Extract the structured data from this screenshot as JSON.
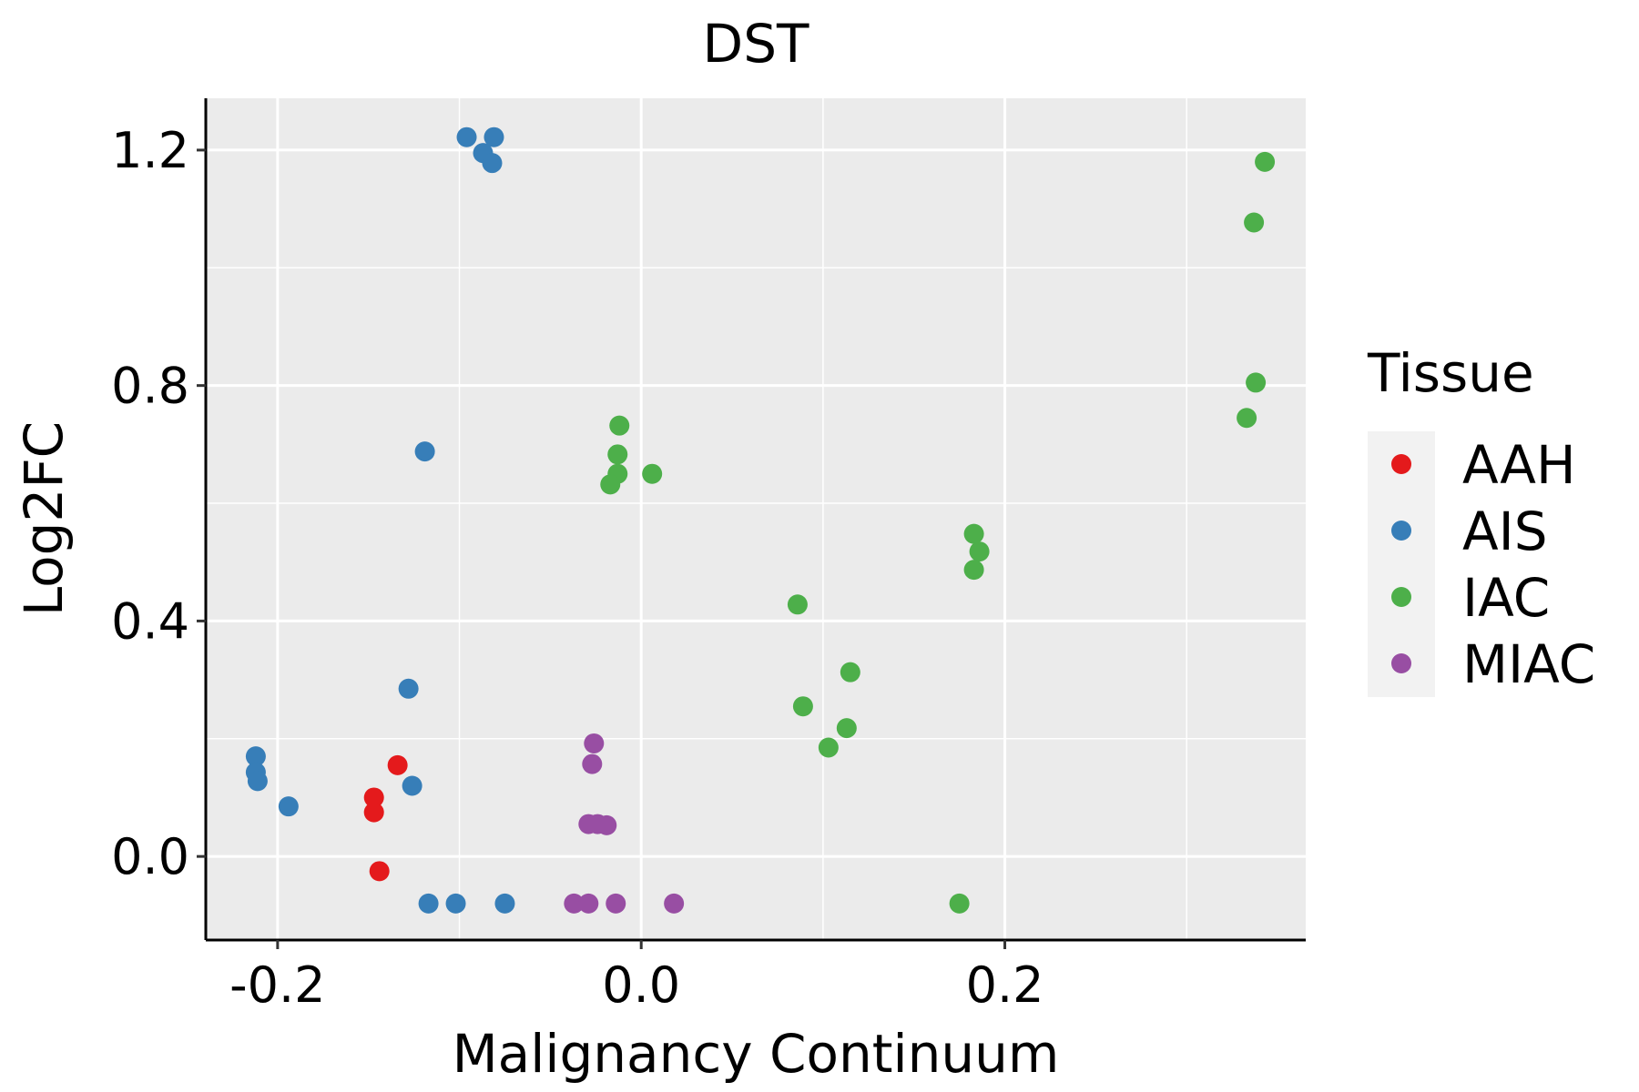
{
  "chart_data": {
    "type": "scatter",
    "title": "DST",
    "xlabel": "Malignancy Continuum",
    "ylabel": "Log2FC",
    "xlim": [
      -0.2395,
      0.3655
    ],
    "ylim": [
      -0.142,
      1.288
    ],
    "xticks": [
      -0.2,
      0.0,
      0.2
    ],
    "xtick_labels": [
      "-0.2",
      "0.0",
      "0.2"
    ],
    "yticks": [
      0.0,
      0.4,
      0.8,
      1.2
    ],
    "ytick_labels": [
      "0.0",
      "0.4",
      "0.8",
      "1.2"
    ],
    "grid": true,
    "legend": {
      "title": "Tissue",
      "position": "right"
    },
    "series": [
      {
        "name": "AAH",
        "color": "#E41A1C",
        "points": [
          {
            "x": -0.134,
            "y": 0.155
          },
          {
            "x": -0.147,
            "y": 0.1
          },
          {
            "x": -0.147,
            "y": 0.075
          },
          {
            "x": -0.144,
            "y": -0.025
          }
        ]
      },
      {
        "name": "AIS",
        "color": "#377EB8",
        "points": [
          {
            "x": -0.096,
            "y": 1.222
          },
          {
            "x": -0.081,
            "y": 1.222
          },
          {
            "x": -0.087,
            "y": 1.195
          },
          {
            "x": -0.082,
            "y": 1.178
          },
          {
            "x": -0.119,
            "y": 0.688
          },
          {
            "x": -0.128,
            "y": 0.285
          },
          {
            "x": -0.126,
            "y": 0.12
          },
          {
            "x": -0.212,
            "y": 0.17
          },
          {
            "x": -0.212,
            "y": 0.143
          },
          {
            "x": -0.211,
            "y": 0.128
          },
          {
            "x": -0.194,
            "y": 0.085
          },
          {
            "x": -0.117,
            "y": -0.08
          },
          {
            "x": -0.102,
            "y": -0.08
          },
          {
            "x": -0.075,
            "y": -0.08
          }
        ]
      },
      {
        "name": "IAC",
        "color": "#4DAF4A",
        "points": [
          {
            "x": 0.343,
            "y": 1.18
          },
          {
            "x": 0.337,
            "y": 1.077
          },
          {
            "x": 0.338,
            "y": 0.805
          },
          {
            "x": 0.333,
            "y": 0.745
          },
          {
            "x": -0.012,
            "y": 0.732
          },
          {
            "x": -0.013,
            "y": 0.683
          },
          {
            "x": -0.013,
            "y": 0.65
          },
          {
            "x": 0.006,
            "y": 0.65
          },
          {
            "x": -0.017,
            "y": 0.632
          },
          {
            "x": 0.183,
            "y": 0.548
          },
          {
            "x": 0.186,
            "y": 0.518
          },
          {
            "x": 0.183,
            "y": 0.487
          },
          {
            "x": 0.086,
            "y": 0.428
          },
          {
            "x": 0.115,
            "y": 0.313
          },
          {
            "x": 0.089,
            "y": 0.255
          },
          {
            "x": 0.113,
            "y": 0.218
          },
          {
            "x": 0.103,
            "y": 0.185
          },
          {
            "x": 0.175,
            "y": -0.08
          }
        ]
      },
      {
        "name": "MIAC",
        "color": "#984EA3",
        "points": [
          {
            "x": -0.026,
            "y": 0.192
          },
          {
            "x": -0.027,
            "y": 0.157
          },
          {
            "x": -0.029,
            "y": 0.055
          },
          {
            "x": -0.024,
            "y": 0.055
          },
          {
            "x": -0.019,
            "y": 0.053
          },
          {
            "x": -0.037,
            "y": -0.08
          },
          {
            "x": -0.029,
            "y": -0.08
          },
          {
            "x": -0.014,
            "y": -0.08
          },
          {
            "x": 0.018,
            "y": -0.08
          }
        ]
      }
    ]
  }
}
